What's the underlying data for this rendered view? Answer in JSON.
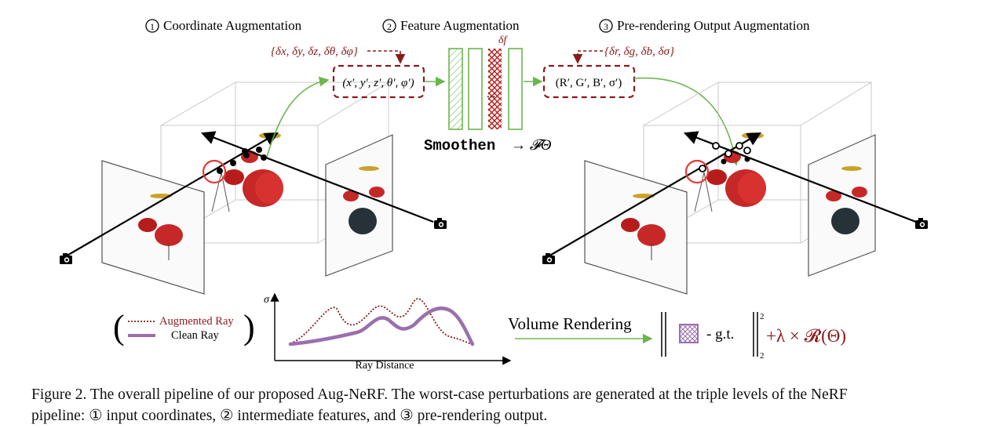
{
  "figure": {
    "stage1_num": "1",
    "stage1_title": "Coordinate Augmentation",
    "stage2_num": "2",
    "stage2_title": "Feature Augmentation",
    "stage3_num": "3",
    "stage3_title": "Pre-rendering Output Augmentation",
    "coord_perturb": "{δx, δy, δz, δθ, δφ}",
    "coord_tuple": "(x′, y′, z′, θ′, φ′)",
    "feature_perturb": "δf",
    "mlp_dots": "...",
    "mlp_label_mono": "Smoothen",
    "mlp_label_math": "→ 𝓕Θ",
    "output_perturb": "{δr, δg, δb, δσ}",
    "output_tuple": "(R′, G′, B′, σ′)",
    "legend_augmented": "Augmented Ray",
    "legend_clean": "Clean Ray",
    "axis_sigma": "σ",
    "axis_ray_distance": "Ray Distance",
    "volume_rendering": "Volume Rendering",
    "gt_label": "- g.t.",
    "norm_sup": "2",
    "norm_sub": "2",
    "regularizer": "+λ × 𝓡(Θ)",
    "colors": {
      "augmented": "#8b1a1a",
      "clean": "#9a6fae",
      "green": "#6db54f",
      "red": "#b71c1c"
    }
  },
  "caption": {
    "line1": "Figure 2. The overall pipeline of our proposed Aug-NeRF. The worst-case perturbations are generated at the triple levels of the NeRF",
    "line2": "pipeline: ① input coordinates, ② intermediate features, and ③ pre-rendering output."
  }
}
